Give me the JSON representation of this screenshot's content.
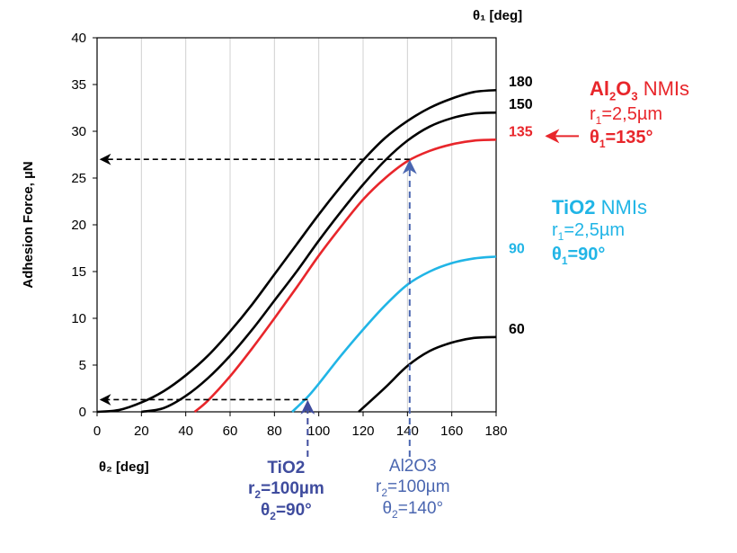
{
  "chart_data": {
    "type": "line",
    "title": "",
    "xlabel": "θ₂ [deg]",
    "ylabel": "Adhesion Force, µN",
    "top_axis_label": "θ₁ [deg]",
    "xlim": [
      0,
      180
    ],
    "ylim": [
      0,
      40
    ],
    "xticks": [
      "0",
      "20",
      "40",
      "60",
      "80",
      "100",
      "120",
      "140",
      "160",
      "180"
    ],
    "yticks": [
      "0",
      "5",
      "10",
      "15",
      "20",
      "25",
      "30",
      "35",
      "40"
    ],
    "grid": "vertical",
    "series": [
      {
        "name": "180",
        "color": "#000000",
        "x": [
          0,
          10,
          20,
          30,
          40,
          50,
          60,
          70,
          80,
          90,
          100,
          110,
          120,
          130,
          140,
          150,
          160,
          170,
          180
        ],
        "y": [
          0,
          0.2,
          1.0,
          2.2,
          3.9,
          6.0,
          8.6,
          11.5,
          14.7,
          17.9,
          21.1,
          24.1,
          26.9,
          29.3,
          31.1,
          32.5,
          33.5,
          34.2,
          34.4
        ]
      },
      {
        "name": "150",
        "color": "#000000",
        "x": [
          20,
          30,
          40,
          50,
          60,
          70,
          80,
          90,
          100,
          110,
          120,
          130,
          140,
          150,
          160,
          170,
          180
        ],
        "y": [
          0,
          0.4,
          1.7,
          3.6,
          6.0,
          8.8,
          11.9,
          15.0,
          18.3,
          21.4,
          24.3,
          26.9,
          29.0,
          30.5,
          31.4,
          31.9,
          32.0
        ]
      },
      {
        "name": "135",
        "color": "#e8262b",
        "x": [
          44,
          50,
          60,
          70,
          80,
          90,
          100,
          110,
          120,
          130,
          140,
          150,
          160,
          170,
          180
        ],
        "y": [
          0,
          1.2,
          3.8,
          6.8,
          10.0,
          13.3,
          16.7,
          19.8,
          22.7,
          25.0,
          26.8,
          27.9,
          28.6,
          29.0,
          29.1
        ]
      },
      {
        "name": "90",
        "color": "#21b5e6",
        "x": [
          88,
          95,
          100,
          110,
          120,
          130,
          140,
          150,
          160,
          170,
          180
        ],
        "y": [
          0,
          1.6,
          3.0,
          6.0,
          8.8,
          11.4,
          13.6,
          15.0,
          15.9,
          16.4,
          16.6
        ]
      },
      {
        "name": "60",
        "color": "#000000",
        "x": [
          118,
          130,
          140,
          150,
          160,
          170,
          180
        ],
        "y": [
          0,
          2.6,
          4.9,
          6.5,
          7.4,
          7.9,
          8.0
        ]
      }
    ],
    "arrows": [
      {
        "id": "al2o3",
        "color": "#4a66b0",
        "x": 141,
        "y": 27,
        "to_x": 0
      },
      {
        "id": "tio2",
        "color": "#3f4c9e",
        "x": 95,
        "y": 1.3,
        "to_x": 0
      }
    ],
    "red_pointer_color": "#e8262b"
  },
  "annotations": {
    "al2o3": {
      "title_main": "Al",
      "sub1": "2",
      "mid": "O",
      "sub2": "3",
      "title_rest": " NMIs",
      "r1_pre": "r",
      "r1_sub": "1",
      "r1_post": "=2,5µm",
      "t1_pre": "θ",
      "t1_sub": "1",
      "t1_post": "=135°"
    },
    "tio2": {
      "title_bold": "TiO2",
      "title_rest": " NMIs",
      "r1_pre": "r",
      "r1_sub": "1",
      "r1_post": "=2,5µm",
      "t1_pre": "θ",
      "t1_sub": "1",
      "t1_post": "=90°"
    },
    "tio2_r2": {
      "name": "TiO2",
      "r2_pre": "r",
      "r2_sub": "2",
      "r2_post": "=100µm",
      "t2_pre": "θ",
      "t2_sub": "2",
      "t2_post": "=90°"
    },
    "al2o3_r2": {
      "name": "Al2O3",
      "r2_pre": "r",
      "r2_sub": "2",
      "r2_post": "=100µm",
      "t2_pre": "θ",
      "t2_sub": "2",
      "t2_post": "=140°"
    }
  }
}
